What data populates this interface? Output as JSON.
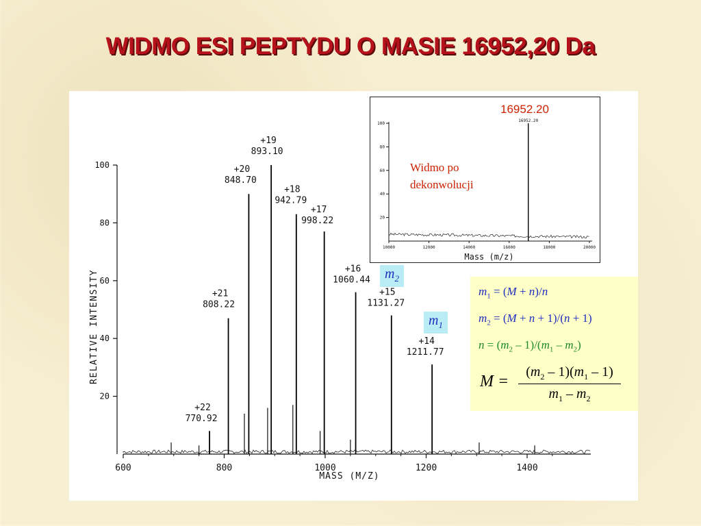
{
  "slide": {
    "title": "WIDMO ESI PEPTYDU O MASIE 16952,20 Da"
  },
  "colors": {
    "title": "#b5121b",
    "inset_text": "#cc2200",
    "badge_bg": "#b9ecf5",
    "formula_bg": "#ffffc8",
    "formula_blue": "#1f2fbf",
    "formula_green": "#1e8a2e"
  },
  "chart_data": [
    {
      "type": "line",
      "xlabel": "MASS (M/Z)",
      "ylabel": "RELATIVE INTENSITY",
      "xlim": [
        600,
        1500
      ],
      "ylim": [
        0,
        100
      ],
      "x_ticks": [
        "600",
        "800",
        "1000",
        "1200",
        "1400"
      ],
      "y_ticks": [
        "20",
        "40",
        "60",
        "80",
        "100"
      ],
      "peaks": [
        {
          "charge": "+22",
          "mz": "770.92",
          "x": 770.92,
          "y": 8
        },
        {
          "charge": "+21",
          "mz": "808.22",
          "x": 808.22,
          "y": 47
        },
        {
          "charge": "+20",
          "mz": "848.70",
          "x": 848.7,
          "y": 90
        },
        {
          "charge": "+19",
          "mz": "893.10",
          "x": 893.1,
          "y": 100
        },
        {
          "charge": "+18",
          "mz": "942.79",
          "x": 942.79,
          "y": 83
        },
        {
          "charge": "+17",
          "mz": "998.22",
          "x": 998.22,
          "y": 77
        },
        {
          "charge": "+16",
          "mz": "1060.44",
          "x": 1060.44,
          "y": 56
        },
        {
          "charge": "+15",
          "mz": "1131.27",
          "x": 1131.27,
          "y": 48
        },
        {
          "charge": "+14",
          "mz": "1211.77",
          "x": 1211.77,
          "y": 31
        }
      ],
      "minor_peaks": [
        {
          "x": 695,
          "y": 4
        },
        {
          "x": 750,
          "y": 3
        },
        {
          "x": 840,
          "y": 14
        },
        {
          "x": 886,
          "y": 16
        },
        {
          "x": 936,
          "y": 17
        },
        {
          "x": 990,
          "y": 8
        },
        {
          "x": 1050,
          "y": 5
        },
        {
          "x": 1305,
          "y": 4
        },
        {
          "x": 1415,
          "y": 3
        }
      ]
    },
    {
      "type": "line",
      "title": "16952.20",
      "xlabel": "Mass (m/z)",
      "xlim": [
        10000,
        20000
      ],
      "ylim": [
        0,
        100
      ],
      "x_ticks": [
        "10000",
        "12000",
        "14000",
        "16000",
        "18000",
        "20000"
      ],
      "y_ticks": [
        "20",
        "40",
        "60",
        "80",
        "100"
      ],
      "peaks": [
        {
          "mz": "16952.20",
          "x": 16952.2,
          "y": 100
        }
      ]
    }
  ],
  "inset": {
    "peak_label": "16952.20",
    "text_line1": "Widmo po",
    "text_line2": "dekonwolucji"
  },
  "badges": {
    "m2": "m",
    "m2_sub": "2",
    "m1": "m",
    "m1_sub": "1"
  },
  "formulas": {
    "f1": "m1 = (M + n)/n",
    "f2": "m2 = (M + n + 1)/(n + 1)",
    "f3": "n = (m2 – 1)/(m1 – m2)",
    "f4_numerator": "(m2 – 1)(m1 – 1)",
    "f4_denominator": "m1 – m2"
  }
}
